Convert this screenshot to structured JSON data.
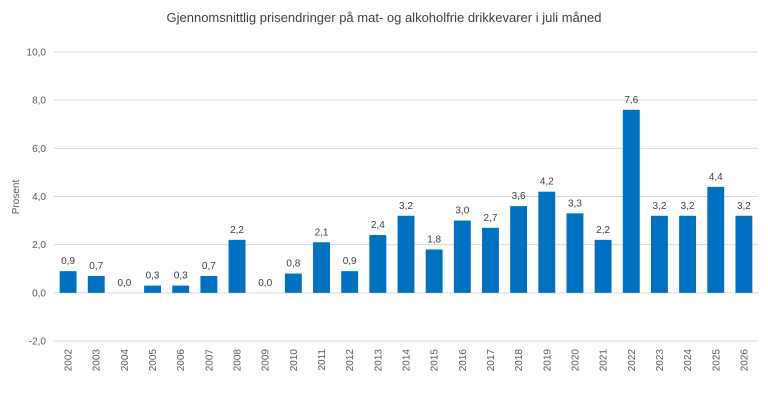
{
  "chart_data": {
    "type": "bar",
    "title": "Gjennomsnittlig prisendringer på mat- og alkoholfrie drikkevarer i juli måned",
    "ylabel": "Prosent",
    "xlabel": "",
    "ylim": [
      -2,
      10
    ],
    "yticks": [
      -2,
      0,
      2,
      4,
      6,
      8,
      10
    ],
    "ytick_labels": [
      "-2,0",
      "0,0",
      "2,0",
      "4,0",
      "6,0",
      "8,0",
      "10,0"
    ],
    "grid": true,
    "legend": "none",
    "bar_color": "#0070C0",
    "categories": [
      "2002",
      "2003",
      "2004",
      "2005",
      "2006",
      "2007",
      "2008",
      "2009",
      "2010",
      "2011",
      "2012",
      "2013",
      "2014",
      "2015",
      "2016",
      "2017",
      "2018",
      "2019",
      "2020",
      "2021",
      "2022",
      "2023",
      "2024",
      "2025",
      "2026"
    ],
    "values": [
      0.9,
      0.7,
      0.0,
      0.3,
      0.3,
      0.7,
      2.2,
      0.0,
      0.8,
      2.1,
      0.9,
      2.4,
      3.2,
      1.8,
      3.0,
      2.7,
      3.6,
      4.2,
      3.3,
      2.2,
      7.6,
      3.2,
      3.2,
      4.4,
      3.2
    ],
    "data_labels": [
      "0,9",
      "0,7",
      "0,0",
      "0,3",
      "0,3",
      "0,7",
      "2,2",
      "0,0",
      "0,8",
      "2,1",
      "0,9",
      "2,4",
      "3,2",
      "1,8",
      "3,0",
      "2,7",
      "3,6",
      "4,2",
      "3,3",
      "2,2",
      "7,6",
      "3,2",
      "3,2",
      "4,4",
      "3,2"
    ]
  }
}
